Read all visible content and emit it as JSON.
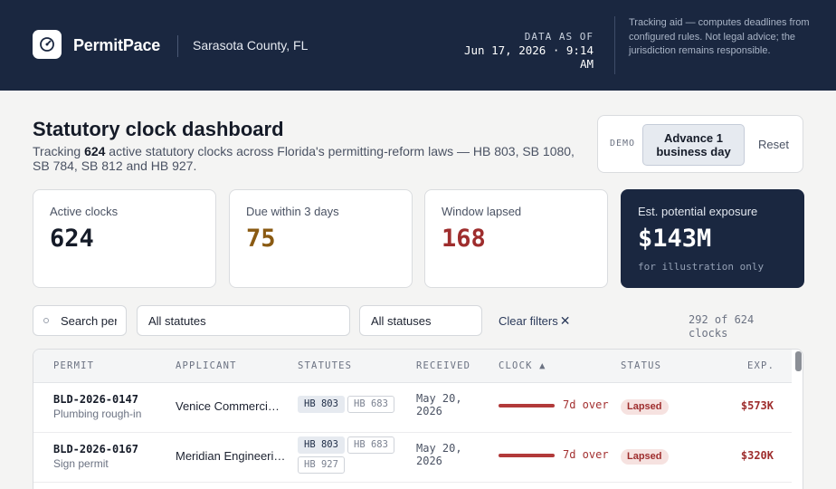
{
  "header": {
    "brand": "PermitPace",
    "county": "Sarasota County, FL",
    "data_as_of_label": "DATA AS OF",
    "data_as_of_value": "Jun 17, 2026 · 9:14 AM",
    "disclaimer": "Tracking aid — computes deadlines from configured rules. Not legal advice; the jurisdiction remains responsible.",
    "logo_icon": "gauge-icon"
  },
  "title": {
    "heading": "Statutory clock dashboard",
    "subtitle_pre": "Tracking ",
    "subtitle_count": "624",
    "subtitle_post": " active statutory clocks across Florida's permitting-reform laws — HB 803, SB 1080, SB 784, SB 812 and HB 927."
  },
  "demo": {
    "label": "DEMO",
    "advance_label": "Advance 1 business day",
    "reset_label": "Reset"
  },
  "stats": [
    {
      "label": "Active clocks",
      "value": "624",
      "color": "#151b28"
    },
    {
      "label": "Due within 3 days",
      "value": "75",
      "color": "#8a5a12"
    },
    {
      "label": "Window lapsed",
      "value": "168",
      "color": "#9e2d2d"
    },
    {
      "label": "Est. potential exposure",
      "value": "$143M",
      "note": "for illustration only",
      "color": "#ffffff"
    }
  ],
  "filters": {
    "search_value": "Search permits",
    "statute_select": "All statutes",
    "status_select": "All statuses",
    "clear_label": "Clear filters",
    "clear_icon": "close-icon",
    "count_text": "292 of 624 clocks"
  },
  "table": {
    "columns": [
      "PERMIT",
      "APPLICANT",
      "STATUTES",
      "RECEIVED",
      "CLOCK ▲",
      "STATUS",
      "EXP."
    ],
    "rows": [
      {
        "permit_id": "BLD-2026-0147",
        "permit_type": "Plumbing rough-in",
        "applicant": "Venice Commercial Partners",
        "statutes": [
          "HB 803",
          "HB 683"
        ],
        "received": "May 20, 2026",
        "clock_text": "7d over",
        "clock_progress": 1.0,
        "status": "Lapsed",
        "exposure": "$573K"
      },
      {
        "permit_id": "BLD-2026-0167",
        "permit_type": "Sign permit",
        "applicant": "Meridian Engineering Group",
        "statutes": [
          "HB 803",
          "HB 683",
          "HB 927"
        ],
        "received": "May 20, 2026",
        "clock_text": "7d over",
        "clock_progress": 1.0,
        "status": "Lapsed",
        "exposure": "$320K"
      }
    ]
  }
}
